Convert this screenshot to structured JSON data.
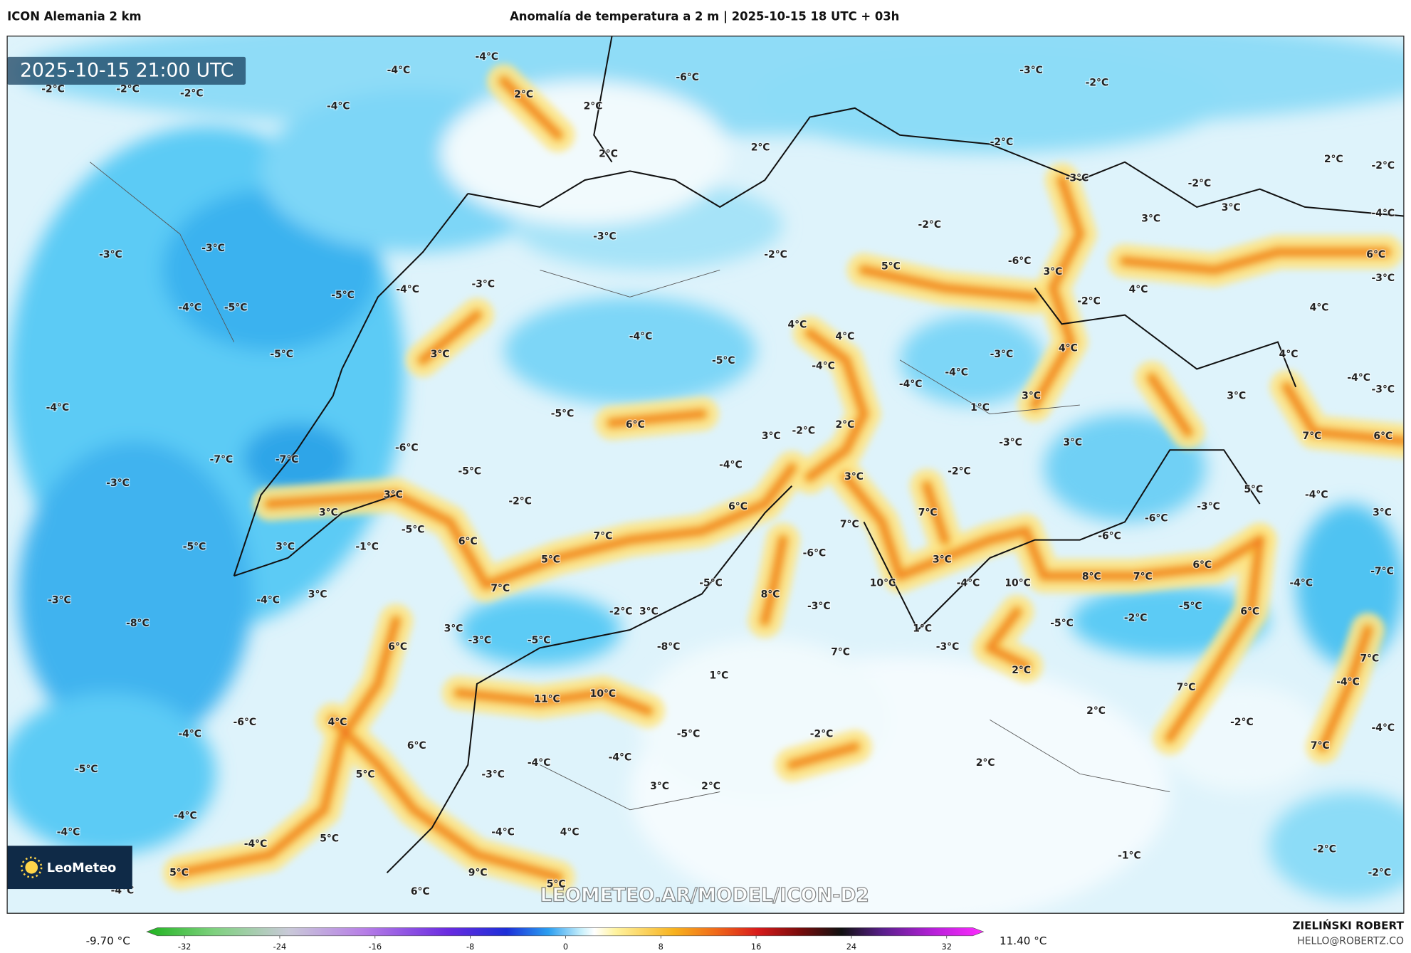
{
  "header": {
    "left": "ICON Alemania 2 km",
    "center": "Anomalía de temperatura a 2 m | 2025-10-15 18 UTC + 03h"
  },
  "map": {
    "timestamp": "2025-10-15 21:00 UTC",
    "watermark": "LEOMETEO.AR/MODEL/ICON-D2",
    "logo": "LeoMeteo",
    "contour_labels": [
      "-4°C",
      "-4°C",
      "2°C",
      "-2°C",
      "-2°C",
      "-2°C",
      "-4°C",
      "2°C",
      "-6°C",
      "-3°C",
      "-2°C",
      "2°C",
      "2°C",
      "-2°C",
      "2°C",
      "-2°C",
      "-3°C",
      "-2°C",
      "3°C",
      "3°C",
      "-4°C",
      "-2°C",
      "-3°C",
      "-3°C",
      "-3°C",
      "-2°C",
      "5°C",
      "-6°C",
      "3°C",
      "6°C",
      "-3°C",
      "-3°C",
      "-4°C",
      "-5°C",
      "4°C",
      "-2°C",
      "-4°C",
      "-5°C",
      "4°C",
      "4°C",
      "4°C",
      "-4°C",
      "4°C",
      "-3°C",
      "-5°C",
      "3°C",
      "-5°C",
      "-4°C",
      "-4°C",
      "4°C",
      "-4°C",
      "-4°C",
      "3°C",
      "3°C",
      "-3°C",
      "-4°C",
      "1°C",
      "-5°C",
      "6°C",
      "2°C",
      "-2°C",
      "3°C",
      "-3°C",
      "3°C",
      "7°C",
      "6°C",
      "-6°C",
      "-7°C",
      "-7°C",
      "-4°C",
      "-5°C",
      "-2°C",
      "3°C",
      "-3°C",
      "3°C",
      "-2°C",
      "5°C",
      "-4°C",
      "6°C",
      "7°C",
      "3°C",
      "-5°C",
      "-3°C",
      "3°C",
      "-6°C",
      "7°C",
      "7°C",
      "6°C",
      "-5°C",
      "3°C",
      "-1°C",
      "-6°C",
      "3°C",
      "5°C",
      "-6°C",
      "8°C",
      "7°C",
      "6°C",
      "-7°C",
      "10°C",
      "10°C",
      "-4°C",
      "-4°C",
      "-5°C",
      "7°C",
      "8°C",
      "-3°C",
      "-4°C",
      "3°C",
      "-3°C",
      "-2°C",
      "3°C",
      "6°C",
      "-5°C",
      "-2°C",
      "-8°C",
      "-5°C",
      "3°C",
      "1°C",
      "-3°C",
      "-5°C",
      "6°C",
      "-8°C",
      "-3°C",
      "7°C",
      "7°C",
      "2°C",
      "1°C",
      "-4°C",
      "7°C",
      "11°C",
      "10°C",
      "2°C",
      "-6°C",
      "4°C",
      "-2°C",
      "-4°C",
      "-4°C",
      "-2°C",
      "-5°C",
      "6°C",
      "7°C",
      "-4°C",
      "-4°C",
      "2°C",
      "-5°C",
      "5°C",
      "-3°C",
      "3°C",
      "2°C",
      "-4°C",
      "-4°C",
      "4°C",
      "-4°C",
      "-4°C",
      "5°C",
      "-1°C",
      "-2°C",
      "5°C",
      "9°C",
      "-2°C",
      "5°C",
      "6°C",
      "-4°C"
    ]
  },
  "colorbar": {
    "min_label": "-9.70 °C",
    "max_label": "11.40 °C",
    "ticks": [
      -32,
      -24,
      -16,
      -8,
      0,
      8,
      16,
      24,
      32
    ]
  },
  "footer": {
    "author": "ZIELIŃSKI ROBERT",
    "email": "HELLO@ROBERTZ.CO"
  }
}
